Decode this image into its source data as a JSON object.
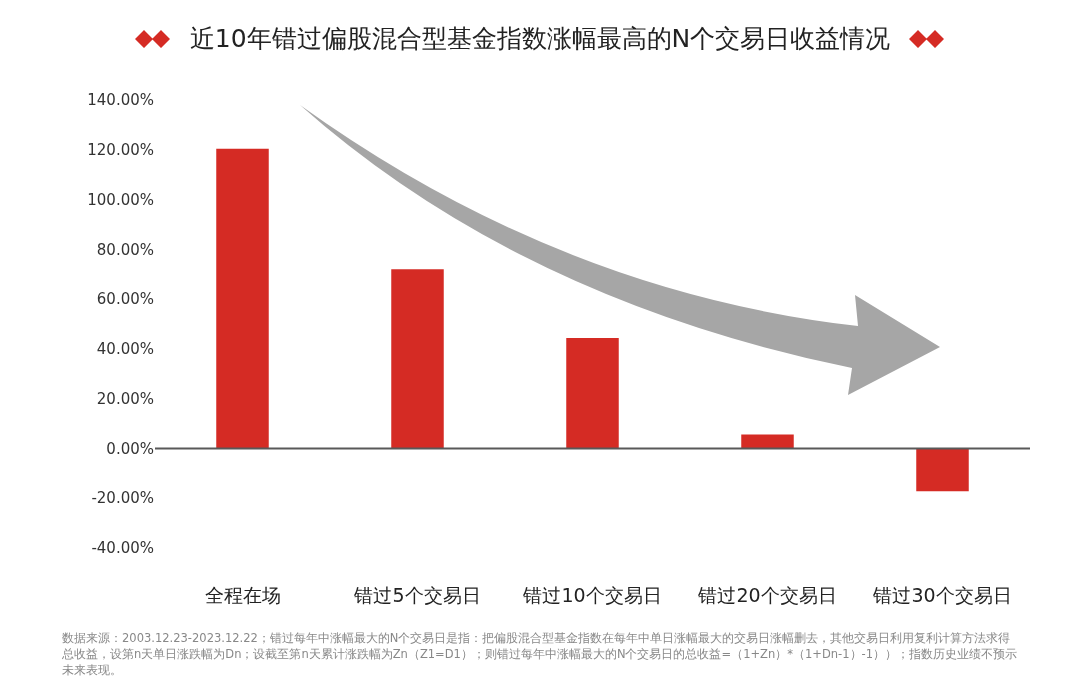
{
  "chart_data": {
    "type": "bar",
    "title": "近10年错过偏股混合型基金指数涨幅最高的N个交易日收益情况",
    "categories": [
      "全程在场",
      "错过5个交易日",
      "错过10个交易日",
      "错过20个交易日",
      "错过30个交易日"
    ],
    "values": [
      120.4,
      72,
      44.4,
      5.6,
      -17.2
    ],
    "color": "#d52b24",
    "ylim": [
      -40,
      140
    ],
    "ref_lines": [
      {
        "axis": "y",
        "value": 0,
        "color": "#595959"
      }
    ],
    "yticks": [
      {
        "value": -40,
        "label": "-40.00%"
      },
      {
        "value": -20,
        "label": "-20.00%"
      },
      {
        "value": 0,
        "label": "0.00%"
      },
      {
        "value": 20,
        "label": "20.00%"
      },
      {
        "value": 40,
        "label": "40.00%"
      },
      {
        "value": 60,
        "label": "60.00%"
      },
      {
        "value": 80,
        "label": "80.00%"
      },
      {
        "value": 100,
        "label": "100.00%"
      },
      {
        "value": 120,
        "label": "120.00%"
      },
      {
        "value": 140,
        "label": "140.00%"
      }
    ],
    "annotations": [
      "数据来源：2003.12.23-2023.12.22；错过每年中涨幅最大的N个交易日是指：把偏股混合型基金指数在每年中单日涨幅最大的交易日涨幅删去，其他交易日利用复利计算方法求得总收益，设第n天单日涨跌幅为Dn；设截至第n天累计涨跌幅为Zn（Z1=D1）；则错过每年中涨幅最大的N个交易日的总收益=（1+Zn）*（1+Dn-1）-1））；指数历史业绩不预示未来表现。"
    ]
  }
}
